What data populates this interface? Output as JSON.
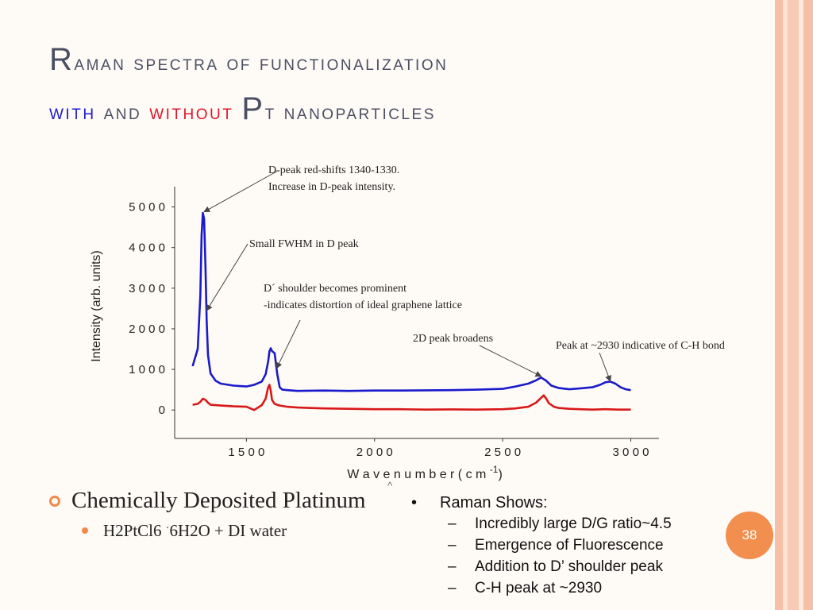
{
  "slide": {
    "title": {
      "line1_first_letter": "R",
      "line1_rest": "aman spectra of functionalization",
      "word_with": "with",
      "word_and": "and",
      "word_without": "without",
      "pt_first_letter": "P",
      "pt_rest": "t nanoparticles"
    },
    "left_bullets": {
      "main": "Chemically Deposited Platinum",
      "sub_part1": "H2PtCl6",
      "sub_dot": "·",
      "sub_part2": "6H2O  + DI water"
    },
    "right_bullets": {
      "bullet_glyph": "•",
      "heading": "Raman Shows:",
      "dash_glyph": "–",
      "items": [
        "Incredibly large D/G ratio~4.5",
        "Emergence of Fluorescence",
        "Addition to D’ shoulder peak",
        "C-H peak at ~2930"
      ]
    },
    "caret": "^",
    "page_number": "38",
    "colors": {
      "with_color": "#1b1bcf",
      "without_color": "#e0142a",
      "accent": "#f28e4e"
    }
  },
  "chart_data": {
    "type": "line",
    "xlabel": "Wavenumber (cm-1)",
    "xlabel_display": "W a v e n u m b e r  ( c m",
    "xlabel_sup": "-1",
    "xlabel_close": ")",
    "ylabel": "Intensity (arb. units)",
    "xlim": [
      1220,
      3110
    ],
    "ylim": [
      -700,
      5500
    ],
    "x_ticks": [
      1500,
      2000,
      2500,
      3000
    ],
    "x_tick_labels": [
      "1 5 0 0",
      "2 0 0 0",
      "2 5 0 0",
      "3 0 0 0"
    ],
    "y_ticks": [
      0,
      1000,
      2000,
      3000,
      4000,
      5000
    ],
    "y_tick_labels": [
      "0",
      "1 0 0 0",
      "2 0 0 0",
      "3 0 0 0",
      "4 0 0 0",
      "5 0 0 0"
    ],
    "grid": false,
    "series": [
      {
        "color": "#1a1acc",
        "x": [
          1290,
          1310,
          1320,
          1325,
          1330,
          1335,
          1340,
          1345,
          1350,
          1360,
          1380,
          1400,
          1450,
          1500,
          1530,
          1560,
          1575,
          1585,
          1590,
          1595,
          1600,
          1610,
          1620,
          1630,
          1640,
          1660,
          1700,
          1800,
          1900,
          2000,
          2100,
          2200,
          2300,
          2400,
          2500,
          2550,
          2600,
          2630,
          2650,
          2670,
          2690,
          2720,
          2760,
          2800,
          2850,
          2880,
          2900,
          2920,
          2940,
          2960,
          2980,
          3000
        ],
        "y": [
          1080,
          1500,
          2800,
          4300,
          4850,
          4700,
          3600,
          2200,
          1350,
          900,
          720,
          650,
          600,
          580,
          620,
          700,
          880,
          1200,
          1450,
          1520,
          1450,
          1400,
          900,
          560,
          500,
          490,
          470,
          480,
          470,
          480,
          480,
          485,
          490,
          500,
          520,
          580,
          650,
          730,
          800,
          720,
          600,
          540,
          510,
          530,
          560,
          620,
          680,
          700,
          650,
          560,
          510,
          490
        ]
      },
      {
        "color": "#d81818",
        "x": [
          1290,
          1310,
          1320,
          1330,
          1340,
          1350,
          1360,
          1380,
          1400,
          1450,
          1500,
          1530,
          1560,
          1575,
          1580,
          1585,
          1590,
          1595,
          1600,
          1610,
          1630,
          1660,
          1700,
          1800,
          1900,
          2000,
          2100,
          2200,
          2300,
          2400,
          2500,
          2550,
          2600,
          2630,
          2650,
          2660,
          2670,
          2680,
          2700,
          2720,
          2760,
          2800,
          2850,
          2900,
          2950,
          3000
        ],
        "y": [
          130,
          150,
          200,
          280,
          250,
          180,
          130,
          120,
          110,
          90,
          80,
          0,
          120,
          280,
          420,
          560,
          620,
          480,
          250,
          150,
          110,
          80,
          60,
          40,
          30,
          20,
          20,
          10,
          15,
          10,
          20,
          40,
          80,
          180,
          300,
          360,
          280,
          170,
          80,
          50,
          30,
          20,
          10,
          20,
          10,
          10
        ]
      }
    ],
    "annotations": [
      {
        "lines": [
          "D-peak red-shifts 1340-1330.",
          "Increase in D-peak intensity."
        ],
        "arrow_to": [
          1335,
          4880
        ]
      },
      {
        "lines": [
          "Small FWHM in D peak"
        ],
        "arrow_to": [
          1345,
          2450
        ]
      },
      {
        "lines": [
          "D´ shoulder becomes prominent",
          "-indicates distortion of ideal graphene lattice"
        ],
        "arrow_to": [
          1618,
          1030
        ]
      },
      {
        "lines": [
          "2D peak broadens"
        ],
        "arrow_to": [
          2650,
          830
        ]
      },
      {
        "lines": [
          "Peak at ~2930 indicative of C-H bond"
        ],
        "arrow_to": [
          2920,
          710
        ]
      }
    ]
  }
}
